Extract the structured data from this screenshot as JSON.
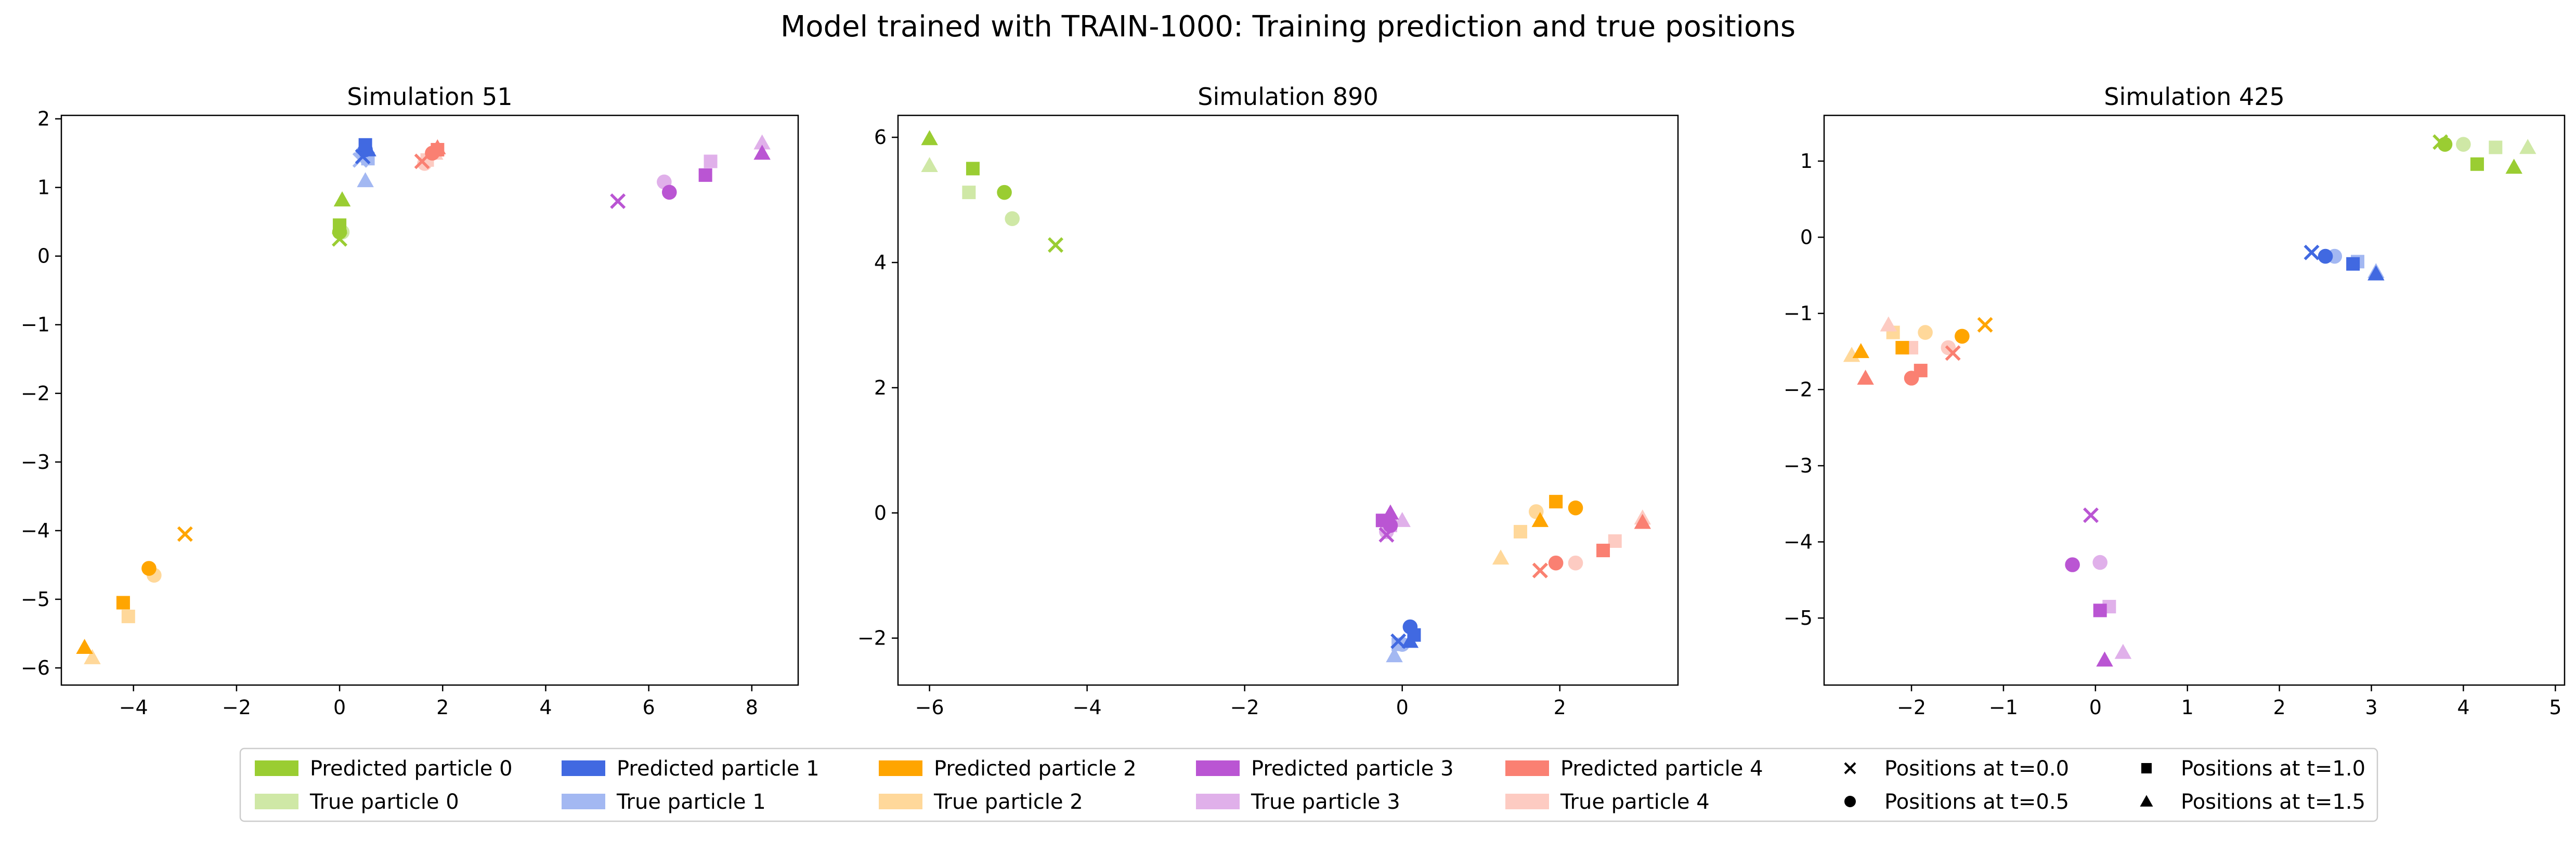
{
  "figure_title": "Model trained with TRAIN-1000: Training prediction and true positions",
  "colors": {
    "predicted": [
      "#9ACD32",
      "#4169E1",
      "#FFA500",
      "#BA55D3",
      "#FA8072"
    ],
    "true": [
      "#CFE8A6",
      "#A3B8F2",
      "#FFD89A",
      "#E0B0EA",
      "#FDCBC2"
    ]
  },
  "legend": {
    "particles": [
      {
        "predicted": "Predicted particle 0",
        "true": "True particle 0"
      },
      {
        "predicted": "Predicted particle 1",
        "true": "True particle 1"
      },
      {
        "predicted": "Predicted particle 2",
        "true": "True particle 2"
      },
      {
        "predicted": "Predicted particle 3",
        "true": "True particle 3"
      },
      {
        "predicted": "Predicted particle 4",
        "true": "True particle 4"
      }
    ],
    "markers": [
      {
        "marker": "x",
        "label": "Positions at t=0.0"
      },
      {
        "marker": "o",
        "label": "Positions at t=0.5"
      },
      {
        "marker": "s",
        "label": "Positions at t=1.0"
      },
      {
        "marker": "^",
        "label": "Positions at t=1.5"
      }
    ]
  },
  "chart_data": [
    {
      "type": "scatter",
      "title": "Simulation 51",
      "xlim": [
        -5.4,
        8.9
      ],
      "ylim": [
        -6.25,
        2.05
      ],
      "xticks": [
        -4,
        -2,
        0,
        2,
        4,
        6,
        8
      ],
      "yticks": [
        -6,
        -5,
        -4,
        -3,
        -2,
        -1,
        0,
        1,
        2
      ],
      "series": [
        {
          "particle": 0,
          "kind": "true",
          "x": [
            0.0,
            0.05,
            0.0,
            0.05
          ],
          "y": [
            0.25,
            0.35,
            0.45,
            0.82
          ]
        },
        {
          "particle": 0,
          "kind": "pred",
          "x": [
            0.0,
            0.0,
            0.0,
            0.05
          ],
          "y": [
            0.25,
            0.35,
            0.45,
            0.82
          ]
        },
        {
          "particle": 1,
          "kind": "true",
          "x": [
            0.4,
            0.45,
            0.55,
            0.5
          ],
          "y": [
            1.4,
            1.5,
            1.42,
            1.1
          ]
        },
        {
          "particle": 1,
          "kind": "pred",
          "x": [
            0.45,
            0.5,
            0.5,
            0.55
          ],
          "y": [
            1.45,
            1.55,
            1.62,
            1.55
          ]
        },
        {
          "particle": 2,
          "kind": "true",
          "x": [
            -3.0,
            -3.6,
            -4.1,
            -4.8
          ],
          "y": [
            -4.05,
            -4.65,
            -5.25,
            -5.85
          ]
        },
        {
          "particle": 2,
          "kind": "pred",
          "x": [
            -3.0,
            -3.7,
            -4.2,
            -4.95
          ],
          "y": [
            -4.05,
            -4.55,
            -5.05,
            -5.7
          ]
        },
        {
          "particle": 3,
          "kind": "true",
          "x": [
            5.4,
            6.3,
            7.2,
            8.2
          ],
          "y": [
            0.8,
            1.08,
            1.38,
            1.65
          ]
        },
        {
          "particle": 3,
          "kind": "pred",
          "x": [
            5.4,
            6.4,
            7.1,
            8.2
          ],
          "y": [
            0.8,
            0.93,
            1.18,
            1.5
          ]
        },
        {
          "particle": 4,
          "kind": "true",
          "x": [
            1.6,
            1.65,
            1.7,
            1.85
          ],
          "y": [
            1.38,
            1.35,
            1.4,
            1.5
          ]
        },
        {
          "particle": 4,
          "kind": "pred",
          "x": [
            1.6,
            1.8,
            1.9,
            1.9
          ],
          "y": [
            1.38,
            1.5,
            1.55,
            1.58
          ]
        }
      ]
    },
    {
      "type": "scatter",
      "title": "Simulation 890",
      "xlim": [
        -6.4,
        3.5
      ],
      "ylim": [
        -2.75,
        6.35
      ],
      "xticks": [
        -6,
        -4,
        -2,
        0,
        2
      ],
      "yticks": [
        -2,
        0,
        2,
        4,
        6
      ],
      "series": [
        {
          "particle": 0,
          "kind": "true",
          "x": [
            -4.4,
            -4.95,
            -5.5,
            -6.0
          ],
          "y": [
            4.28,
            4.7,
            5.12,
            5.55
          ]
        },
        {
          "particle": 0,
          "kind": "pred",
          "x": [
            -4.4,
            -5.05,
            -5.45,
            -6.0
          ],
          "y": [
            4.28,
            5.12,
            5.5,
            5.98
          ]
        },
        {
          "particle": 1,
          "kind": "true",
          "x": [
            -0.05,
            0.0,
            -0.05,
            -0.1
          ],
          "y": [
            -2.05,
            -2.1,
            -2.1,
            -2.28
          ]
        },
        {
          "particle": 1,
          "kind": "pred",
          "x": [
            -0.05,
            0.1,
            0.15,
            0.1
          ],
          "y": [
            -2.05,
            -1.82,
            -1.95,
            -2.05
          ]
        },
        {
          "particle": 2,
          "kind": "true",
          "x": [
            1.75,
            1.7,
            1.5,
            1.25
          ],
          "y": [
            -0.92,
            0.02,
            -0.3,
            -0.72
          ]
        },
        {
          "particle": 2,
          "kind": "pred",
          "x": [
            1.75,
            2.2,
            1.95,
            1.75
          ],
          "y": [
            -0.92,
            0.08,
            0.18,
            -0.12
          ]
        },
        {
          "particle": 3,
          "kind": "true",
          "x": [
            -0.2,
            -0.2,
            -0.15,
            0.0
          ],
          "y": [
            -0.35,
            -0.3,
            -0.2,
            -0.12
          ]
        },
        {
          "particle": 3,
          "kind": "pred",
          "x": [
            -0.2,
            -0.15,
            -0.25,
            -0.15
          ],
          "y": [
            -0.35,
            -0.2,
            -0.12,
            0.0
          ]
        },
        {
          "particle": 4,
          "kind": "true",
          "x": [
            1.75,
            2.2,
            2.7,
            3.05
          ],
          "y": [
            -0.92,
            -0.8,
            -0.45,
            -0.08
          ]
        },
        {
          "particle": 4,
          "kind": "pred",
          "x": [
            1.75,
            1.95,
            2.55,
            3.05
          ],
          "y": [
            -0.92,
            -0.8,
            -0.6,
            -0.15
          ]
        }
      ]
    },
    {
      "type": "scatter",
      "title": "Simulation 425",
      "xlim": [
        -2.95,
        5.1
      ],
      "ylim": [
        -5.88,
        1.6
      ],
      "xticks": [
        -2,
        -1,
        0,
        1,
        2,
        3,
        4,
        5
      ],
      "yticks": [
        -5,
        -4,
        -3,
        -2,
        -1,
        0,
        1
      ],
      "series": [
        {
          "particle": 0,
          "kind": "true",
          "x": [
            3.75,
            4.0,
            4.35,
            4.7
          ],
          "y": [
            1.25,
            1.22,
            1.18,
            1.18
          ]
        },
        {
          "particle": 0,
          "kind": "pred",
          "x": [
            3.75,
            3.8,
            4.15,
            4.55
          ],
          "y": [
            1.25,
            1.22,
            0.96,
            0.92
          ]
        },
        {
          "particle": 1,
          "kind": "true",
          "x": [
            2.35,
            2.6,
            2.85,
            3.05
          ],
          "y": [
            -0.2,
            -0.25,
            -0.32,
            -0.45
          ]
        },
        {
          "particle": 1,
          "kind": "pred",
          "x": [
            2.35,
            2.5,
            2.8,
            3.05
          ],
          "y": [
            -0.2,
            -0.25,
            -0.35,
            -0.48
          ]
        },
        {
          "particle": 2,
          "kind": "true",
          "x": [
            -1.2,
            -1.85,
            -2.2,
            -2.65
          ],
          "y": [
            -1.15,
            -1.25,
            -1.25,
            -1.55
          ]
        },
        {
          "particle": 2,
          "kind": "pred",
          "x": [
            -1.2,
            -1.45,
            -2.1,
            -2.55
          ],
          "y": [
            -1.15,
            -1.3,
            -1.45,
            -1.5
          ]
        },
        {
          "particle": 3,
          "kind": "true",
          "x": [
            -0.05,
            0.05,
            0.15,
            0.3
          ],
          "y": [
            -3.65,
            -4.27,
            -4.85,
            -5.45
          ]
        },
        {
          "particle": 3,
          "kind": "pred",
          "x": [
            -0.05,
            -0.25,
            0.05,
            0.1
          ],
          "y": [
            -3.65,
            -4.3,
            -4.9,
            -5.55
          ]
        },
        {
          "particle": 4,
          "kind": "true",
          "x": [
            -1.55,
            -1.6,
            -2.0,
            -2.25
          ],
          "y": [
            -1.52,
            -1.45,
            -1.45,
            -1.15
          ]
        },
        {
          "particle": 4,
          "kind": "pred",
          "x": [
            -1.55,
            -2.0,
            -1.9,
            -2.5
          ],
          "y": [
            -1.52,
            -1.85,
            -1.75,
            -1.85
          ]
        }
      ]
    }
  ]
}
